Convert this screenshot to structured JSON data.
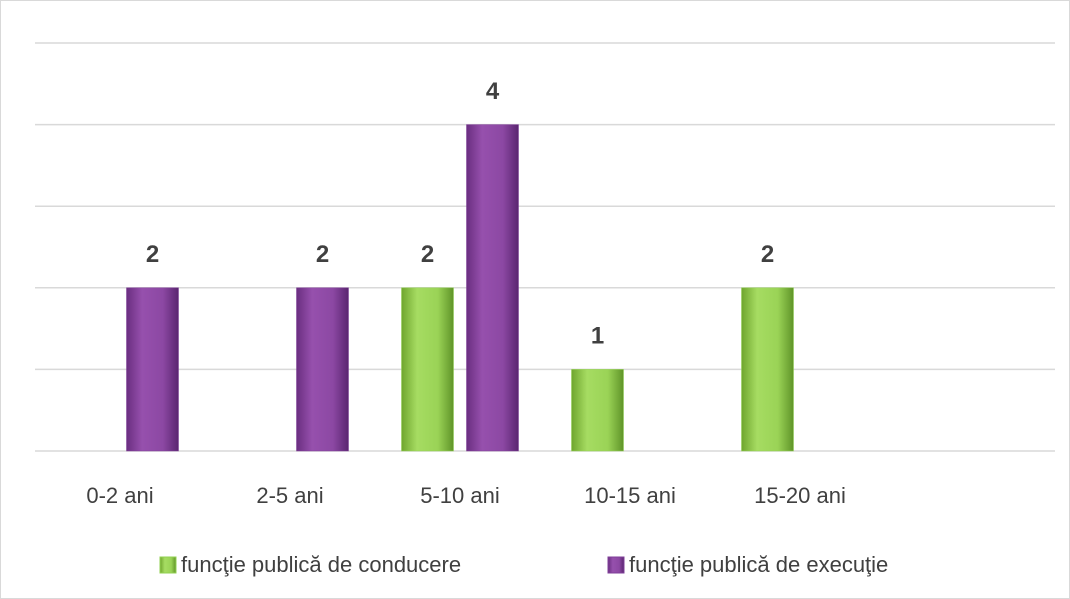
{
  "chart_data": {
    "type": "bar",
    "categories": [
      "0-2 ani",
      "2-5 ani",
      "5-10 ani",
      "10-15 ani",
      "15-20 ani",
      null
    ],
    "series": [
      {
        "name": "funcţie publică de conducere",
        "color": "#92d050",
        "values": [
          null,
          null,
          2,
          1,
          2,
          null
        ]
      },
      {
        "name": "funcţie publică de execuţie",
        "color": "#7f3f98",
        "values": [
          2,
          2,
          4,
          null,
          null,
          null
        ]
      }
    ],
    "ylim": [
      0,
      5
    ],
    "yticks": [
      0,
      1,
      2,
      3,
      4,
      5
    ],
    "grid": true,
    "legend": "bottom"
  }
}
